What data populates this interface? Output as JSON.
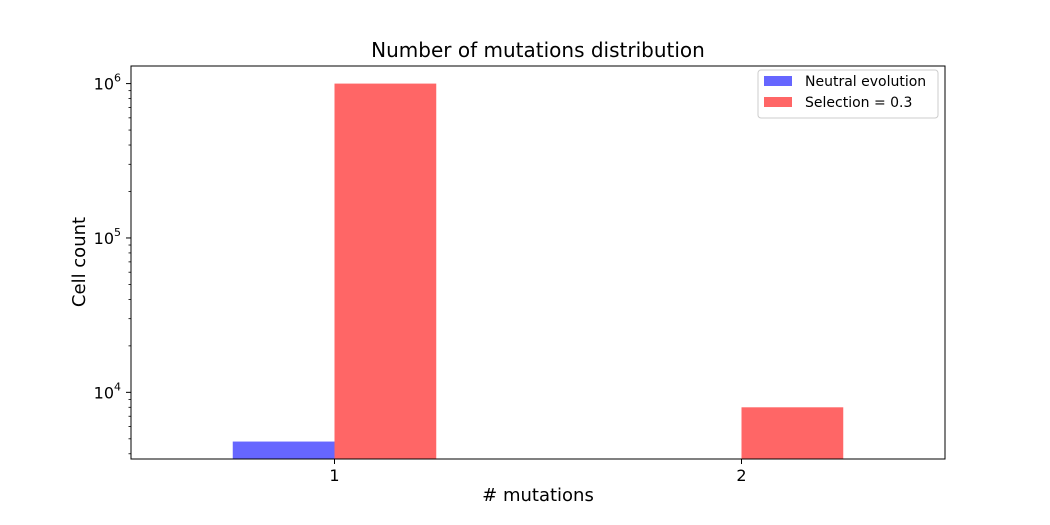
{
  "chart_data": {
    "type": "bar",
    "title": "Number of mutations distribution",
    "xlabel": "# mutations",
    "ylabel": "Cell count",
    "yscale": "log",
    "ylim": [
      3700,
      1300000
    ],
    "categories": [
      "1",
      "2"
    ],
    "x_ticks": [
      "1",
      "2"
    ],
    "y_ticks": [
      {
        "value": 10000,
        "base": "10",
        "exp": "4"
      },
      {
        "value": 100000,
        "base": "10",
        "exp": "5"
      },
      {
        "value": 1000000,
        "base": "10",
        "exp": "6"
      }
    ],
    "series": [
      {
        "name": "Neutral evolution",
        "color": "#6666ff",
        "values": [
          4800,
          null
        ]
      },
      {
        "name": "Selection = 0.3",
        "color": "#ff6666",
        "values": [
          1000000,
          8000
        ]
      }
    ],
    "legend_position": "top-right",
    "grid": false
  }
}
